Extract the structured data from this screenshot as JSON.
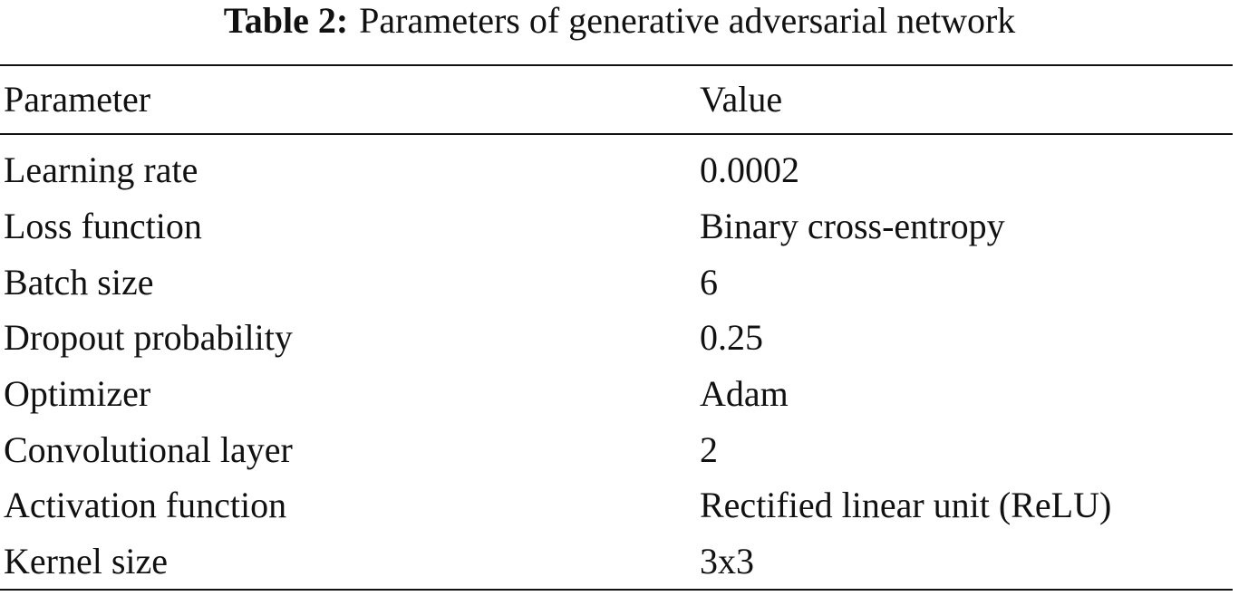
{
  "caption": {
    "label": "Table 2:",
    "text": "Parameters of generative adversarial network"
  },
  "table": {
    "header": [
      "Parameter",
      "Value"
    ],
    "rows": [
      [
        "Learning rate",
        "0.0002"
      ],
      [
        "Loss function",
        "Binary cross-entropy"
      ],
      [
        "Batch size",
        "6"
      ],
      [
        "Dropout probability",
        "0.25"
      ],
      [
        "Optimizer",
        "Adam"
      ],
      [
        "Convolutional layer",
        "2"
      ],
      [
        "Activation function",
        "Rectified linear unit (ReLU)"
      ],
      [
        "Kernel size",
        "3x3"
      ]
    ]
  }
}
